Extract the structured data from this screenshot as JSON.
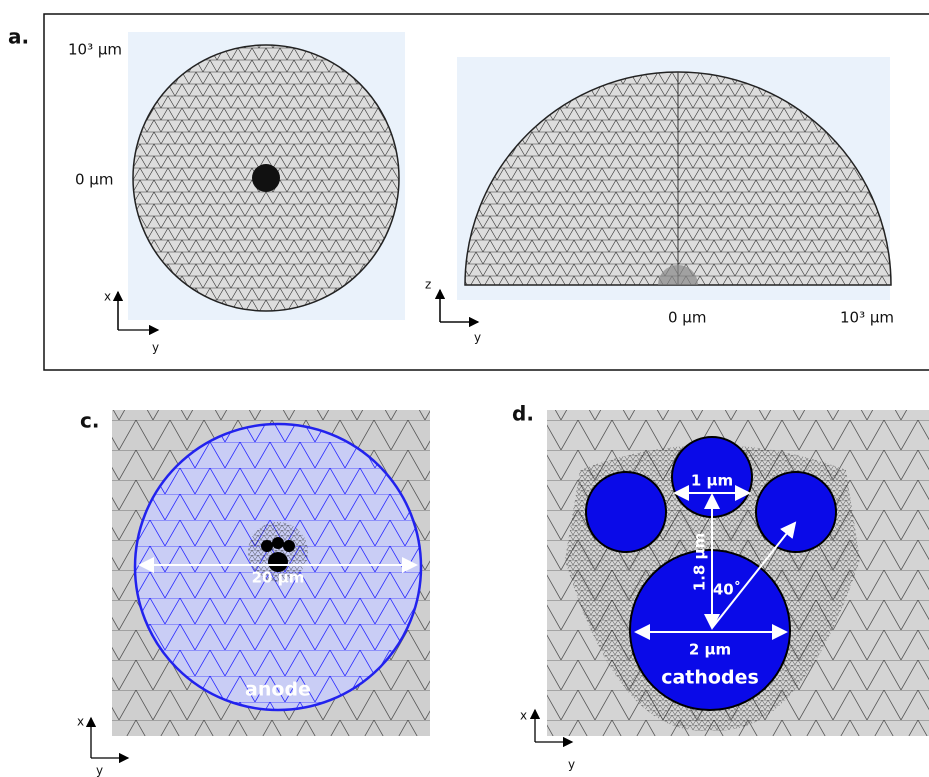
{
  "panel_a": {
    "label": "a.",
    "left_view": {
      "top_label": "10³ μm",
      "center_label": "0 μm",
      "axis_vertical": "x",
      "axis_horizontal": "y"
    },
    "right_view": {
      "axis_vertical": "z",
      "axis_horizontal": "y",
      "center_label": "0 μm",
      "edge_label": "10³ μm"
    }
  },
  "panel_c": {
    "label": "c.",
    "diameter_label": "20 μm",
    "region_label": "anode",
    "axis_vertical": "x",
    "axis_horizontal": "y"
  },
  "panel_d": {
    "label": "d.",
    "small_diameter_label": "1 μm",
    "spacing_label": "1.8 μm",
    "angle_label": "40˚",
    "large_diameter_label": "2 μm",
    "region_label": "cathodes",
    "axis_vertical": "x",
    "axis_horizontal": "y"
  }
}
